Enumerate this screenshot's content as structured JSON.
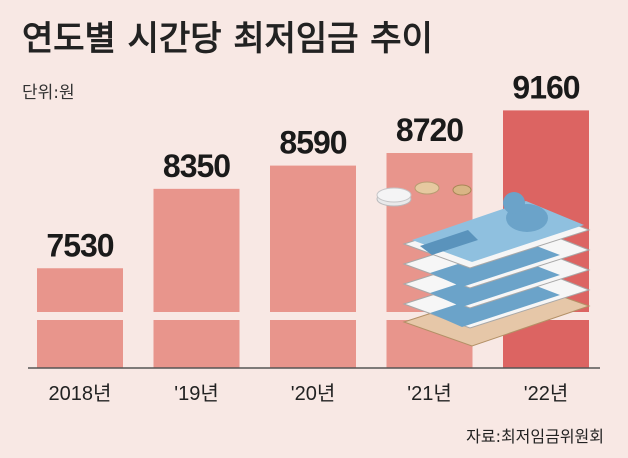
{
  "chart_data": {
    "type": "bar",
    "title": "연도별 시간당 최저임금 추이",
    "unit_label": "단위:원",
    "categories": [
      "2018년",
      "'19년",
      "'20년",
      "'21년",
      "'22년"
    ],
    "values": [
      7530,
      8350,
      8590,
      8720,
      9160
    ],
    "ylim": [
      0,
      9500
    ],
    "axis_break": true,
    "grid": false,
    "legend": "none",
    "colors": {
      "bar": "#e8958c",
      "bar_highlight": "#dc6462",
      "background": "#f8e8e4"
    },
    "source": "자료:최저임금위원회"
  }
}
